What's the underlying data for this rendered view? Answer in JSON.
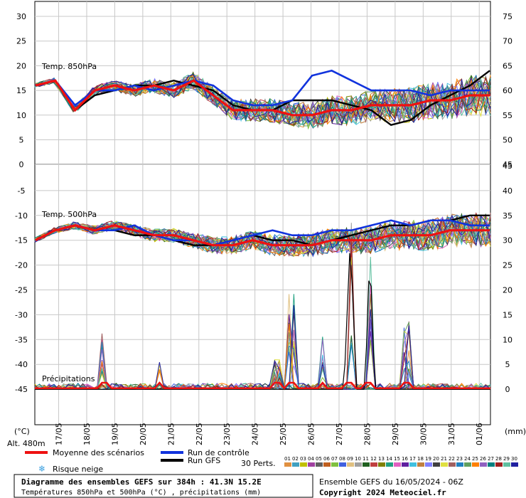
{
  "chart_data": {
    "type": "line",
    "x_dates": [
      "17/05",
      "18/05",
      "19/05",
      "20/05",
      "21/05",
      "22/05",
      "23/05",
      "24/05",
      "25/05",
      "26/05",
      "27/05",
      "28/05",
      "29/05",
      "30/05",
      "31/05",
      "01/06"
    ],
    "panel_top": {
      "label": "Temp. 850hPa",
      "left_ticks": [
        "30",
        "25",
        "20",
        "15",
        "10",
        "5",
        "0"
      ],
      "right_ticks": [
        "75",
        "70",
        "65",
        "60",
        "55",
        "50",
        "45"
      ],
      "ylim": [
        0,
        30
      ],
      "series": [
        {
          "name": "Moyenne des scénarios",
          "values": [
            16,
            17,
            11,
            15,
            16,
            15,
            16,
            15,
            17,
            14,
            11,
            11,
            11,
            10,
            10,
            11,
            11,
            12,
            12,
            12,
            13,
            13,
            14,
            14
          ]
        },
        {
          "name": "Run de contrôle",
          "values": [
            16,
            17,
            12,
            15,
            15,
            16,
            15,
            16,
            17,
            16,
            13,
            12,
            12,
            13,
            18,
            19,
            17,
            15,
            15,
            15,
            14,
            15,
            15,
            15
          ]
        },
        {
          "name": "Run GFS",
          "values": [
            16,
            17,
            11,
            14,
            15,
            16,
            16,
            17,
            16,
            15,
            12,
            11,
            11,
            13,
            13,
            13,
            12,
            11,
            8,
            9,
            12,
            14,
            16,
            19
          ]
        }
      ]
    },
    "panel_bottom": {
      "label_temp": "Temp. 500hPa",
      "label_precip": "Précipitations",
      "left_ticks": [
        "-5",
        "-10",
        "-15",
        "-20",
        "-25",
        "-30",
        "-35",
        "-40",
        "-45"
      ],
      "right_ticks": [
        "45",
        "40",
        "35",
        "30",
        "25",
        "20",
        "15",
        "10",
        "5",
        "0"
      ],
      "temp_ylim": [
        -50,
        0
      ],
      "precip_ylim": [
        0,
        45
      ],
      "series": [
        {
          "name": "Moyenne des scénarios",
          "values": [
            -15,
            -13,
            -12,
            -13,
            -12,
            -13,
            -14,
            -14,
            -15,
            -16,
            -16,
            -15,
            -16,
            -16,
            -16,
            -15,
            -15,
            -15,
            -14,
            -14,
            -14,
            -13,
            -13,
            -13
          ]
        },
        {
          "name": "Run de contrôle",
          "values": [
            -15,
            -13,
            -12,
            -13,
            -13,
            -12,
            -14,
            -15,
            -15,
            -16,
            -15,
            -14,
            -13,
            -14,
            -14,
            -13,
            -13,
            -12,
            -11,
            -12,
            -11,
            -11,
            -12,
            -12
          ]
        },
        {
          "name": "Run GFS",
          "values": [
            -15,
            -13,
            -12,
            -13,
            -13,
            -14,
            -14,
            -15,
            -16,
            -16,
            -15,
            -14,
            -15,
            -15,
            -16,
            -15,
            -14,
            -13,
            -12,
            -12,
            -11,
            -11,
            -10,
            -10
          ]
        }
      ],
      "precip_peaks": [
        {
          "date_index": 1.6,
          "value": 13
        },
        {
          "date_index": 3.6,
          "value": 11
        },
        {
          "date_index": 7.8,
          "value": 6
        },
        {
          "date_index": 8.3,
          "value": 21
        },
        {
          "date_index": 9.4,
          "value": 11
        },
        {
          "date_index": 10.4,
          "value": 35
        },
        {
          "date_index": 11.1,
          "value": 33
        },
        {
          "date_index": 12.4,
          "value": 14
        }
      ]
    },
    "ensemble_members": [
      "01",
      "02",
      "03",
      "04",
      "05",
      "06",
      "07",
      "08",
      "09",
      "10",
      "11",
      "12",
      "13",
      "14",
      "15",
      "16",
      "17",
      "18",
      "19",
      "20",
      "21",
      "22",
      "23",
      "24",
      "25",
      "26",
      "27",
      "28",
      "29",
      "30"
    ],
    "member_colors": [
      "#e09040",
      "#40a0c0",
      "#c0c000",
      "#a040a0",
      "#606060",
      "#c06020",
      "#80c040",
      "#4060e0",
      "#e0c080",
      "#a0a0a0",
      "#206020",
      "#c04040",
      "#808000",
      "#20a080",
      "#e060c0",
      "#6020a0",
      "#40c0e0",
      "#c08040",
      "#8080ff",
      "#404040",
      "#e0e040",
      "#a06060",
      "#2080c0",
      "#60a060",
      "#ff8000",
      "#9060c0",
      "#008080",
      "#a02020",
      "#60c0a0",
      "#2020a0"
    ]
  },
  "footer": {
    "deg_unit": "(°C)",
    "mm_unit": "(mm)",
    "altitude": "Alt. 480m",
    "legend_mean": "Moyenne des scénarios",
    "legend_control": "Run de contrôle",
    "legend_gfs": "Run GFS",
    "legend_snow": "Risque neige",
    "perts_label": "30 Perts.",
    "title_line1": "Diagramme des ensembles GEFS sur 384h : 41.3N 15.2E",
    "title_line2": "Températures 850hPa et 500hPa (°C) , précipitations (mm)",
    "run_info": "Ensemble GEFS du 16/05/2024 - 06Z",
    "copyright": "Copyright 2024 Meteociel.fr"
  },
  "colors": {
    "mean": "#ee1111",
    "control": "#1133dd",
    "gfs": "#000000"
  }
}
